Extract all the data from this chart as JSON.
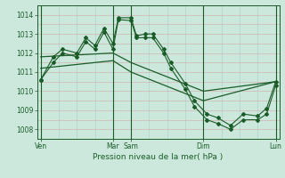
{
  "background_color": "#cce8dc",
  "line_color": "#1a5c28",
  "title": "Pression niveau de la mer( hPa )",
  "ylim": [
    1007.5,
    1014.5
  ],
  "yticks": [
    1008,
    1009,
    1010,
    1011,
    1012,
    1013,
    1014
  ],
  "xlim": [
    -0.2,
    13.2
  ],
  "day_positions": [
    0,
    4,
    5,
    9,
    13
  ],
  "day_labels": [
    "Ven",
    "Mar",
    "Sam",
    "Dim",
    "Lun"
  ],
  "grid_h_color": "#d4a8a8",
  "grid_v_color": "#a8ccc8",
  "jagged1": {
    "x": [
      0,
      0.7,
      1.2,
      2.0,
      2.5,
      3.0,
      3.5,
      4.0,
      4.3,
      5.0,
      5.3,
      5.8,
      6.2,
      6.8,
      7.2,
      8.0,
      8.5,
      9.2,
      9.8,
      10.5,
      11.2,
      12.0,
      12.5,
      13.0
    ],
    "y": [
      1010.6,
      1011.8,
      1012.2,
      1012.0,
      1012.8,
      1012.4,
      1013.3,
      1012.5,
      1013.85,
      1013.85,
      1012.9,
      1013.0,
      1013.0,
      1012.2,
      1011.5,
      1010.4,
      1009.5,
      1008.8,
      1008.6,
      1008.2,
      1008.8,
      1008.7,
      1009.1,
      1010.5
    ]
  },
  "jagged2": {
    "x": [
      0,
      0.7,
      1.2,
      2.0,
      2.5,
      3.0,
      3.5,
      4.0,
      4.3,
      5.0,
      5.3,
      5.8,
      6.2,
      6.8,
      7.2,
      8.0,
      8.5,
      9.2,
      9.8,
      10.5,
      11.2,
      12.0,
      12.5,
      13.0
    ],
    "y": [
      1010.6,
      1011.5,
      1012.0,
      1011.8,
      1012.6,
      1012.2,
      1013.1,
      1012.2,
      1013.75,
      1013.7,
      1012.8,
      1012.8,
      1012.8,
      1012.0,
      1011.2,
      1010.1,
      1009.2,
      1008.5,
      1008.3,
      1008.0,
      1008.5,
      1008.5,
      1008.8,
      1010.3
    ]
  },
  "smooth1": {
    "x": [
      0,
      4,
      5,
      9,
      13
    ],
    "y": [
      1011.8,
      1012.0,
      1011.5,
      1010.0,
      1010.5
    ]
  },
  "smooth2": {
    "x": [
      0,
      4,
      5,
      9,
      13
    ],
    "y": [
      1011.2,
      1011.6,
      1011.0,
      1009.5,
      1010.5
    ]
  }
}
